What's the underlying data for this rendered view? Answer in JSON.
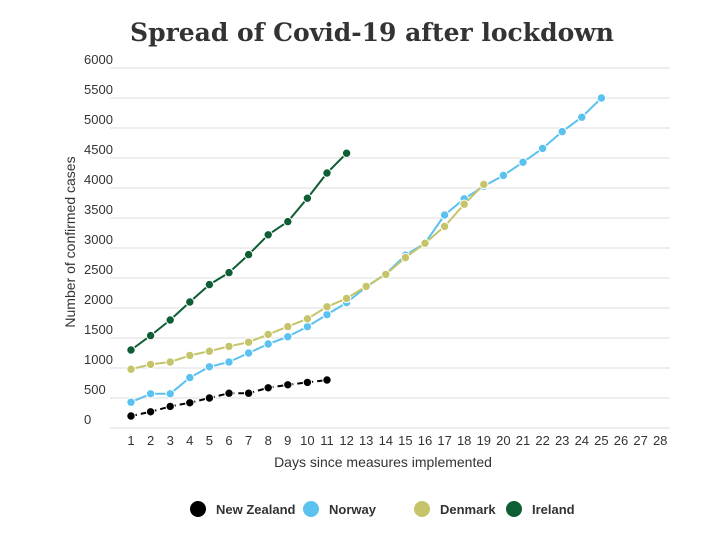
{
  "chart_data": {
    "type": "line",
    "title": "Spread of Covid-19 after lockdown",
    "xlabel": "Days since measures implemented",
    "ylabel": "Number of confirmed cases",
    "x_ticks": [
      1,
      2,
      3,
      4,
      5,
      6,
      7,
      8,
      9,
      10,
      11,
      12,
      13,
      14,
      15,
      16,
      17,
      18,
      19,
      20,
      21,
      22,
      23,
      24,
      25,
      26,
      27,
      28
    ],
    "y_ticks": [
      0,
      500,
      1000,
      1500,
      2000,
      2500,
      3000,
      3500,
      4000,
      4500,
      5000,
      5500,
      6000
    ],
    "xlim": [
      1,
      28
    ],
    "ylim": [
      0,
      6000
    ],
    "grid": true,
    "legend_position": "bottom",
    "series": [
      {
        "name": "New Zealand",
        "color": "#000000",
        "dashed": true,
        "x": [
          1,
          2,
          3,
          4,
          5,
          6,
          7,
          8,
          9,
          10,
          11
        ],
        "values": [
          200,
          270,
          360,
          420,
          500,
          580,
          580,
          670,
          720,
          760,
          800
        ]
      },
      {
        "name": "Norway",
        "color": "#5bc2f0",
        "dashed": false,
        "x": [
          1,
          2,
          3,
          4,
          5,
          6,
          7,
          8,
          9,
          10,
          11,
          12,
          13,
          14,
          15,
          16,
          17,
          18,
          19,
          20,
          21,
          22,
          23,
          24,
          25
        ],
        "values": [
          430,
          570,
          570,
          840,
          1020,
          1100,
          1250,
          1400,
          1520,
          1690,
          1890,
          2090,
          2350,
          2570,
          2880,
          3080,
          3550,
          3820,
          4030,
          4210,
          4430,
          4660,
          4940,
          5180,
          5500
        ]
      },
      {
        "name": "Denmark",
        "color": "#c5c46a",
        "dashed": false,
        "x": [
          1,
          2,
          3,
          4,
          5,
          6,
          7,
          8,
          9,
          10,
          11,
          12,
          13,
          14,
          15,
          16,
          17,
          18,
          19
        ],
        "values": [
          980,
          1060,
          1100,
          1210,
          1280,
          1360,
          1430,
          1560,
          1690,
          1820,
          2020,
          2160,
          2360,
          2560,
          2840,
          3080,
          3360,
          3730,
          4060
        ]
      },
      {
        "name": "Ireland",
        "color": "#0e5e35",
        "dashed": false,
        "x": [
          1,
          2,
          3,
          4,
          5,
          6,
          7,
          8,
          9,
          10,
          11,
          12
        ],
        "values": [
          1300,
          1540,
          1800,
          2100,
          2390,
          2590,
          2890,
          3220,
          3440,
          3830,
          4250,
          4580
        ]
      }
    ]
  }
}
